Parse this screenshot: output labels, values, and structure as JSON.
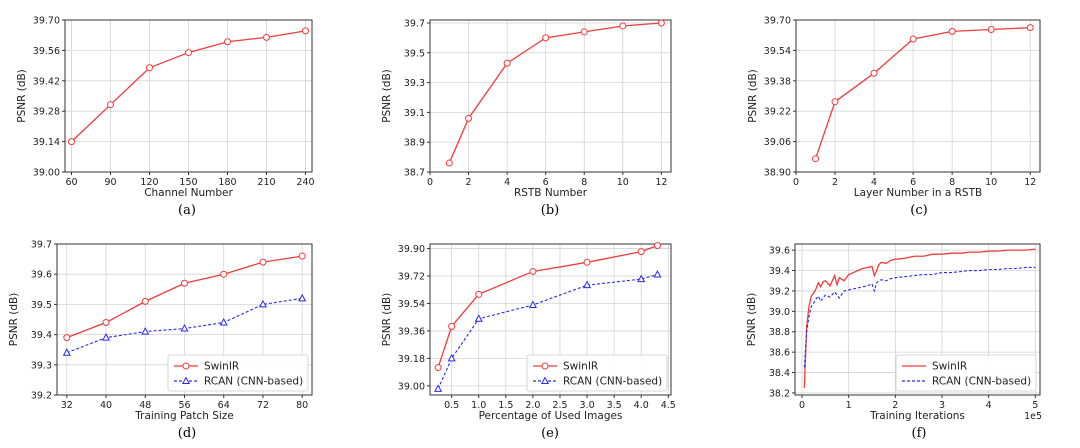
{
  "colors": {
    "swinir": "#f03c3c",
    "rcan": "#2a2ae6",
    "grid": "#d3d3d3",
    "axis": "#333333"
  },
  "chart_data": [
    {
      "caption": "(a)",
      "type": "line",
      "xlabel": "Channel Number",
      "ylabel": "PSNR (dB)",
      "xlim": [
        55,
        245
      ],
      "ylim": [
        39.0,
        39.7
      ],
      "xticks": [
        "60",
        "90",
        "120",
        "150",
        "180",
        "210",
        "240"
      ],
      "xtick_values": [
        60,
        90,
        120,
        150,
        180,
        210,
        240
      ],
      "yticks": [
        "39.00",
        "39.14",
        "39.28",
        "39.42",
        "39.56",
        "39.70"
      ],
      "ytick_values": [
        39.0,
        39.14,
        39.28,
        39.42,
        39.56,
        39.7
      ],
      "grid": true,
      "legend": "none",
      "series": [
        {
          "key": "swinir",
          "marker": "circle",
          "style": "solid",
          "x": [
            60,
            90,
            120,
            150,
            180,
            210,
            240
          ],
          "y": [
            39.14,
            39.31,
            39.48,
            39.55,
            39.6,
            39.62,
            39.65
          ]
        }
      ]
    },
    {
      "caption": "(b)",
      "type": "line",
      "xlabel": "RSTB Number",
      "ylabel": "PSNR (dB)",
      "xlim": [
        0,
        12.5
      ],
      "ylim": [
        38.7,
        39.72
      ],
      "xticks": [
        "0",
        "2",
        "4",
        "6",
        "8",
        "10",
        "12"
      ],
      "xtick_values": [
        0,
        2,
        4,
        6,
        8,
        10,
        12
      ],
      "yticks": [
        "38.7",
        "38.9",
        "39.1",
        "39.3",
        "39.5",
        "39.7"
      ],
      "ytick_values": [
        38.7,
        38.9,
        39.1,
        39.3,
        39.5,
        39.7
      ],
      "grid": true,
      "legend": "none",
      "series": [
        {
          "key": "swinir",
          "marker": "circle",
          "style": "solid",
          "x": [
            1,
            2,
            4,
            6,
            8,
            10,
            12
          ],
          "y": [
            38.76,
            39.06,
            39.43,
            39.6,
            39.64,
            39.68,
            39.7
          ]
        }
      ]
    },
    {
      "caption": "(c)",
      "type": "line",
      "xlabel": "Layer Number in a RSTB",
      "ylabel": "PSNR (dB)",
      "xlim": [
        0,
        12.5
      ],
      "ylim": [
        38.9,
        39.7
      ],
      "xticks": [
        "0",
        "2",
        "4",
        "6",
        "8",
        "10",
        "12"
      ],
      "xtick_values": [
        0,
        2,
        4,
        6,
        8,
        10,
        12
      ],
      "yticks": [
        "38.90",
        "39.06",
        "39.22",
        "39.38",
        "39.54",
        "39.70"
      ],
      "ytick_values": [
        38.9,
        39.06,
        39.22,
        39.38,
        39.54,
        39.7
      ],
      "grid": true,
      "legend": "none",
      "series": [
        {
          "key": "swinir",
          "marker": "circle",
          "style": "solid",
          "x": [
            1,
            2,
            4,
            6,
            8,
            10,
            12
          ],
          "y": [
            38.97,
            39.27,
            39.42,
            39.6,
            39.64,
            39.65,
            39.66
          ]
        }
      ]
    },
    {
      "caption": "(d)",
      "type": "line",
      "xlabel": "Training Patch Size",
      "ylabel": "PSNR (dB)",
      "xlim": [
        30,
        82
      ],
      "ylim": [
        39.2,
        39.7
      ],
      "xticks": [
        "32",
        "40",
        "48",
        "56",
        "64",
        "72",
        "80"
      ],
      "xtick_values": [
        32,
        40,
        48,
        56,
        64,
        72,
        80
      ],
      "yticks": [
        "39.2",
        "39.3",
        "39.4",
        "39.5",
        "39.6",
        "39.7"
      ],
      "ytick_values": [
        39.2,
        39.3,
        39.4,
        39.5,
        39.6,
        39.7
      ],
      "grid": true,
      "legend": "lower-right",
      "series": [
        {
          "key": "swinir",
          "name": "SwinIR",
          "marker": "circle",
          "style": "solid",
          "x": [
            32,
            40,
            48,
            56,
            64,
            72,
            80
          ],
          "y": [
            39.39,
            39.44,
            39.51,
            39.57,
            39.6,
            39.64,
            39.66
          ]
        },
        {
          "key": "rcan",
          "name": "RCAN (CNN-based)",
          "marker": "triangle",
          "style": "dashed",
          "x": [
            32,
            40,
            48,
            56,
            64,
            72,
            80
          ],
          "y": [
            39.34,
            39.39,
            39.41,
            39.42,
            39.44,
            39.5,
            39.52
          ]
        }
      ]
    },
    {
      "caption": "(e)",
      "type": "line",
      "xlabel": "Percentage of Used Images",
      "ylabel": "PSNR (dB)",
      "xlim": [
        0.1,
        4.55
      ],
      "ylim": [
        38.94,
        39.93
      ],
      "xticks": [
        "0.5",
        "1.0",
        "1.5",
        "2.0",
        "2.5",
        "3.0",
        "3.5",
        "4.0",
        "4.5"
      ],
      "xtick_values": [
        0.5,
        1.0,
        1.5,
        2.0,
        2.5,
        3.0,
        3.5,
        4.0,
        4.5
      ],
      "yticks": [
        "39.00",
        "39.18",
        "39.36",
        "39.54",
        "39.72",
        "39.90"
      ],
      "ytick_values": [
        39.0,
        39.18,
        39.36,
        39.54,
        39.72,
        39.9
      ],
      "grid": true,
      "legend": "lower-right",
      "series": [
        {
          "key": "swinir",
          "name": "SwinIR",
          "marker": "circle",
          "style": "solid",
          "x": [
            0.25,
            0.5,
            1.0,
            2.0,
            3.0,
            4.0,
            4.3
          ],
          "y": [
            39.12,
            39.39,
            39.6,
            39.75,
            39.81,
            39.88,
            39.92
          ]
        },
        {
          "key": "rcan",
          "name": "RCAN (CNN-based)",
          "marker": "triangle",
          "style": "dashed",
          "x": [
            0.25,
            0.5,
            1.0,
            2.0,
            3.0,
            4.0,
            4.3
          ],
          "y": [
            38.98,
            39.18,
            39.44,
            39.53,
            39.66,
            39.7,
            39.73
          ]
        }
      ]
    },
    {
      "caption": "(f)",
      "type": "line",
      "xlabel": "Training Iterations",
      "ylabel": "PSNR (dB)",
      "xlim": [
        -0.15,
        5.1
      ],
      "ylim": [
        38.18,
        39.66
      ],
      "xticks": [
        "0",
        "1",
        "2",
        "3",
        "4",
        "5"
      ],
      "xtick_values": [
        0,
        1,
        2,
        3,
        4,
        5
      ],
      "yticks": [
        "38.2",
        "38.4",
        "38.6",
        "38.8",
        "39.0",
        "39.2",
        "39.4",
        "39.6"
      ],
      "ytick_values": [
        38.2,
        38.4,
        38.6,
        38.8,
        39.0,
        39.2,
        39.4,
        39.6
      ],
      "x_offset_label": "1e5",
      "grid": true,
      "legend": "lower-right",
      "series": [
        {
          "key": "swinir",
          "name": "SwinIR",
          "marker": "none",
          "style": "solid",
          "x": [
            0.05,
            0.1,
            0.15,
            0.2,
            0.25,
            0.3,
            0.35,
            0.4,
            0.45,
            0.5,
            0.6,
            0.7,
            0.75,
            0.8,
            0.9,
            1.0,
            1.1,
            1.2,
            1.3,
            1.4,
            1.5,
            1.55,
            1.6,
            1.65,
            1.7,
            1.8,
            1.9,
            2.0,
            2.2,
            2.4,
            2.6,
            2.8,
            3.0,
            3.2,
            3.4,
            3.6,
            3.8,
            4.0,
            4.2,
            4.4,
            4.6,
            4.8,
            5.0
          ],
          "y": [
            38.25,
            38.85,
            39.05,
            39.15,
            39.18,
            39.22,
            39.28,
            39.24,
            39.29,
            39.3,
            39.25,
            39.35,
            39.26,
            39.33,
            39.3,
            39.36,
            39.38,
            39.4,
            39.42,
            39.43,
            39.44,
            39.35,
            39.4,
            39.46,
            39.48,
            39.47,
            39.5,
            39.51,
            39.52,
            39.54,
            39.54,
            39.56,
            39.56,
            39.57,
            39.57,
            39.58,
            39.58,
            39.59,
            39.59,
            39.6,
            39.6,
            39.6,
            39.61
          ]
        },
        {
          "key": "rcan",
          "name": "RCAN (CNN-based)",
          "marker": "none",
          "style": "dashed",
          "x": [
            0.05,
            0.1,
            0.15,
            0.2,
            0.25,
            0.3,
            0.35,
            0.4,
            0.5,
            0.6,
            0.7,
            0.8,
            0.9,
            1.0,
            1.1,
            1.2,
            1.3,
            1.4,
            1.5,
            1.55,
            1.6,
            1.65,
            1.7,
            1.8,
            1.9,
            2.0,
            2.2,
            2.4,
            2.6,
            2.8,
            3.0,
            3.2,
            3.4,
            3.6,
            3.8,
            4.0,
            4.2,
            4.4,
            4.6,
            4.8,
            5.0
          ],
          "y": [
            38.45,
            38.8,
            38.95,
            39.05,
            39.08,
            39.12,
            39.15,
            39.1,
            39.16,
            39.14,
            39.19,
            39.13,
            39.2,
            39.21,
            39.22,
            39.23,
            39.24,
            39.25,
            39.27,
            39.2,
            39.28,
            39.3,
            39.31,
            39.3,
            39.32,
            39.33,
            39.34,
            39.35,
            39.36,
            39.36,
            39.38,
            39.38,
            39.39,
            39.4,
            39.4,
            39.41,
            39.41,
            39.42,
            39.42,
            39.43,
            39.43
          ]
        }
      ]
    }
  ]
}
